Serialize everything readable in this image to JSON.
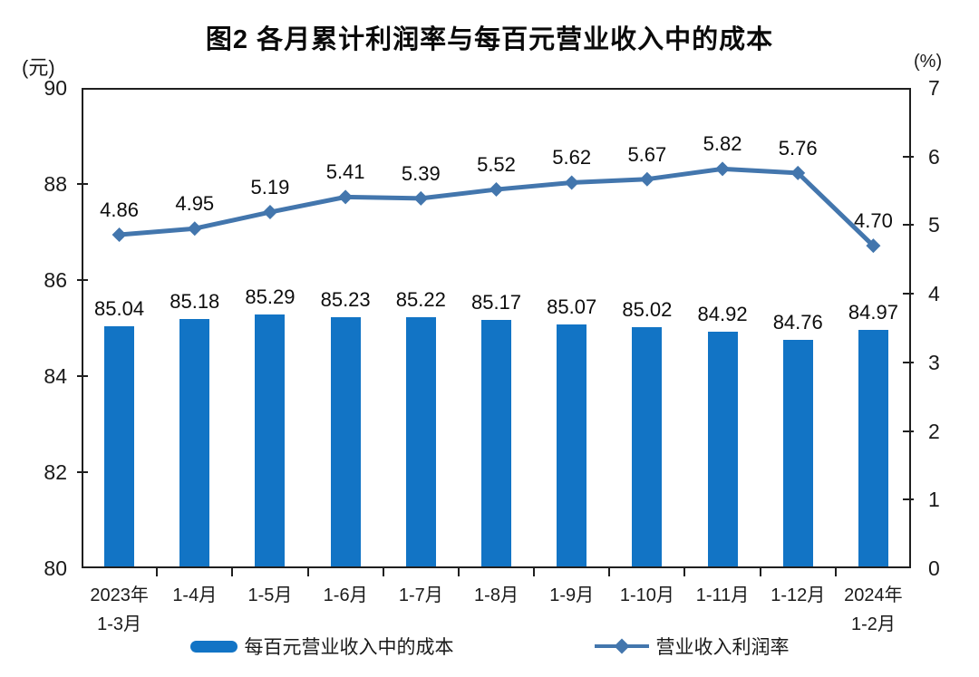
{
  "chart_data": {
    "type": "combo-bar-line",
    "title": "图2 各月累计利润率与每百元营业收入中的成本",
    "categories": [
      "2023年\n1-3月",
      "1-4月",
      "1-5月",
      "1-6月",
      "1-7月",
      "1-8月",
      "1-9月",
      "1-10月",
      "1-11月",
      "1-12月",
      "2024年\n1-2月"
    ],
    "series": [
      {
        "name": "每百元营业收入中的成本",
        "type": "bar",
        "axis": "left",
        "color": "#1274c5",
        "values": [
          85.04,
          85.18,
          85.29,
          85.23,
          85.22,
          85.17,
          85.07,
          85.02,
          84.92,
          84.76,
          84.97
        ]
      },
      {
        "name": "营业收入利润率",
        "type": "line",
        "axis": "right",
        "color": "#4376ad",
        "values": [
          4.86,
          4.95,
          5.19,
          5.41,
          5.39,
          5.52,
          5.62,
          5.67,
          5.82,
          5.76,
          4.7
        ]
      }
    ],
    "left_axis": {
      "unit": "(元)",
      "min": 80,
      "max": 90,
      "tick_step": 2,
      "ticks": [
        80,
        82,
        84,
        86,
        88,
        90
      ]
    },
    "right_axis": {
      "unit": "(%)",
      "min": 0,
      "max": 7,
      "tick_step": 1,
      "ticks": [
        0,
        1,
        2,
        3,
        4,
        5,
        6,
        7
      ]
    },
    "grid": false,
    "legend_position": "bottom",
    "value_label_decimals": 2
  }
}
